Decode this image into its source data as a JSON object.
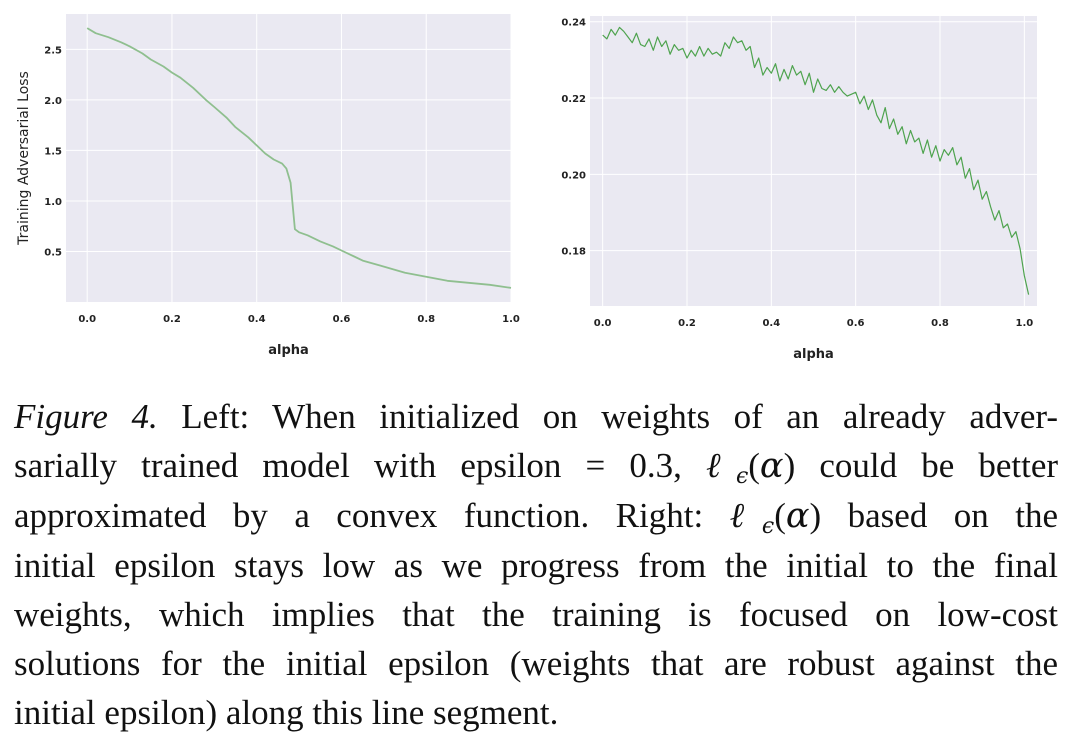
{
  "chart_data": [
    {
      "type": "line",
      "xlabel": "alpha",
      "ylabel": "Training Adversarial Loss",
      "xlim": [
        -0.05,
        1.0
      ],
      "ylim": [
        0.0,
        2.85
      ],
      "xticks": [
        "0.0",
        "0.2",
        "0.4",
        "0.6",
        "0.8",
        "1.0"
      ],
      "yticks": [
        "0.5",
        "1.0",
        "1.5",
        "2.0",
        "2.5"
      ],
      "grid": true,
      "color": "#8fbf8f",
      "x": [
        0.0,
        0.02,
        0.05,
        0.08,
        0.1,
        0.13,
        0.15,
        0.18,
        0.2,
        0.22,
        0.25,
        0.28,
        0.3,
        0.33,
        0.35,
        0.38,
        0.4,
        0.42,
        0.44,
        0.46,
        0.47,
        0.48,
        0.49,
        0.5,
        0.52,
        0.55,
        0.58,
        0.6,
        0.63,
        0.65,
        0.7,
        0.75,
        0.8,
        0.85,
        0.9,
        0.95,
        1.0
      ],
      "y": [
        2.71,
        2.66,
        2.62,
        2.57,
        2.53,
        2.46,
        2.4,
        2.33,
        2.27,
        2.22,
        2.12,
        2.0,
        1.93,
        1.82,
        1.73,
        1.63,
        1.55,
        1.47,
        1.41,
        1.37,
        1.32,
        1.18,
        0.72,
        0.69,
        0.66,
        0.6,
        0.55,
        0.51,
        0.45,
        0.41,
        0.35,
        0.29,
        0.25,
        0.21,
        0.19,
        0.17,
        0.14
      ]
    },
    {
      "type": "line",
      "xlabel": "alpha",
      "ylabel": "",
      "xlim": [
        -0.03,
        1.03
      ],
      "ylim": [
        0.1655,
        0.2415
      ],
      "xticks": [
        "0.0",
        "0.2",
        "0.4",
        "0.6",
        "0.8",
        "1.0"
      ],
      "yticks": [
        "0.18",
        "0.20",
        "0.22",
        "0.24"
      ],
      "grid": true,
      "color": "#4ea34e",
      "x": [
        0.0,
        0.01,
        0.02,
        0.03,
        0.04,
        0.05,
        0.06,
        0.07,
        0.08,
        0.09,
        0.1,
        0.11,
        0.12,
        0.13,
        0.14,
        0.15,
        0.16,
        0.17,
        0.18,
        0.19,
        0.2,
        0.21,
        0.22,
        0.23,
        0.24,
        0.25,
        0.26,
        0.27,
        0.28,
        0.29,
        0.3,
        0.31,
        0.32,
        0.33,
        0.34,
        0.35,
        0.36,
        0.37,
        0.38,
        0.39,
        0.4,
        0.41,
        0.42,
        0.43,
        0.44,
        0.45,
        0.46,
        0.47,
        0.48,
        0.49,
        0.5,
        0.51,
        0.52,
        0.53,
        0.54,
        0.55,
        0.56,
        0.57,
        0.58,
        0.59,
        0.6,
        0.61,
        0.62,
        0.63,
        0.64,
        0.65,
        0.66,
        0.67,
        0.68,
        0.69,
        0.7,
        0.71,
        0.72,
        0.73,
        0.74,
        0.75,
        0.76,
        0.77,
        0.78,
        0.79,
        0.8,
        0.81,
        0.82,
        0.83,
        0.84,
        0.85,
        0.86,
        0.87,
        0.88,
        0.89,
        0.9,
        0.91,
        0.92,
        0.93,
        0.94,
        0.95,
        0.96,
        0.97,
        0.98,
        0.99,
        1.0,
        1.01
      ],
      "y": [
        0.2365,
        0.2355,
        0.238,
        0.2365,
        0.2385,
        0.2375,
        0.236,
        0.2345,
        0.237,
        0.234,
        0.2335,
        0.2355,
        0.2325,
        0.236,
        0.2335,
        0.235,
        0.2315,
        0.234,
        0.2325,
        0.233,
        0.2305,
        0.2325,
        0.231,
        0.2335,
        0.231,
        0.233,
        0.2315,
        0.232,
        0.231,
        0.2345,
        0.233,
        0.236,
        0.2345,
        0.235,
        0.2325,
        0.2335,
        0.228,
        0.2305,
        0.226,
        0.228,
        0.2265,
        0.229,
        0.2245,
        0.2275,
        0.225,
        0.2285,
        0.226,
        0.227,
        0.2235,
        0.2265,
        0.2215,
        0.225,
        0.2225,
        0.222,
        0.2235,
        0.2215,
        0.223,
        0.2215,
        0.2205,
        0.221,
        0.2215,
        0.2185,
        0.2205,
        0.217,
        0.2195,
        0.2155,
        0.2135,
        0.2175,
        0.212,
        0.2145,
        0.2105,
        0.2125,
        0.208,
        0.2115,
        0.2085,
        0.2095,
        0.2055,
        0.209,
        0.2045,
        0.2075,
        0.2035,
        0.2065,
        0.205,
        0.207,
        0.2025,
        0.2045,
        0.199,
        0.2015,
        0.196,
        0.1985,
        0.1935,
        0.1955,
        0.1915,
        0.188,
        0.1905,
        0.186,
        0.187,
        0.1835,
        0.185,
        0.1805,
        0.1735,
        0.1685
      ]
    }
  ],
  "caption": {
    "fig_label": "Figure 4.",
    "lines": [
      [
        {
          "t": " Left: When initialized on weights of an already adver-"
        }
      ],
      [
        {
          "t": "sarially trained model with epsilon = 0.3, "
        },
        {
          "t": "ℓ",
          "m": true
        },
        {
          "t": "ϵ",
          "m": true,
          "sub": true
        },
        {
          "t": "("
        },
        {
          "t": "α",
          "m": true
        },
        {
          "t": ") could be better"
        }
      ],
      [
        {
          "t": "approximated by a convex function. Right: "
        },
        {
          "t": "ℓ",
          "m": true
        },
        {
          "t": "ϵ",
          "m": true,
          "sub": true
        },
        {
          "t": "("
        },
        {
          "t": "α",
          "m": true
        },
        {
          "t": ") based on the"
        }
      ],
      [
        {
          "t": "initial epsilon stays low as we progress from the initial to the final"
        }
      ],
      [
        {
          "t": "weights, which implies that the training is focused on low-cost"
        }
      ],
      [
        {
          "t": "solutions for the initial epsilon (weights that are robust against the"
        }
      ],
      [
        {
          "t": "initial epsilon) along this line segment."
        }
      ]
    ]
  }
}
